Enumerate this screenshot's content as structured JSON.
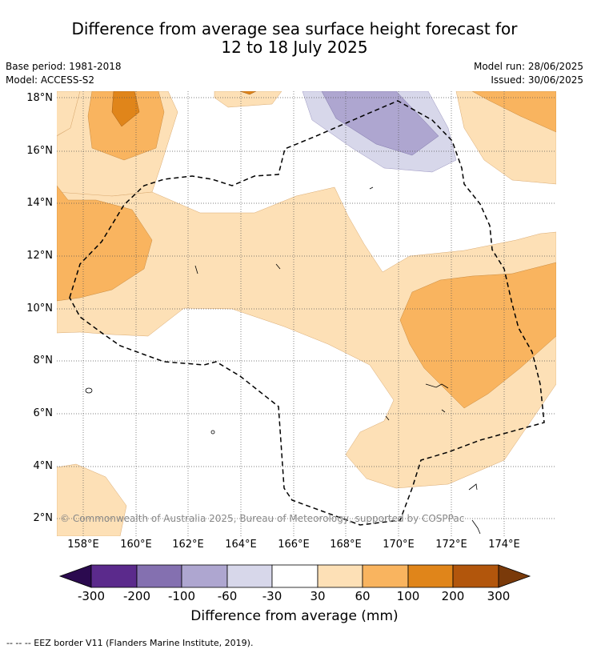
{
  "title_line1": "Difference from average sea surface height forecast for",
  "title_line2": "12 to 18 July 2025",
  "base_period": "Base period: 1981-2018",
  "model": "Model: ACCESS-S2",
  "model_run": "Model run: 28/06/2025",
  "issued": "Issued: 30/06/2025",
  "copyright": "© Commonwealth of Australia 2025, Bureau of Meteorology, supported by COSPPac",
  "lat_labels": [
    "18°N",
    "16°N",
    "14°N",
    "12°N",
    "10°N",
    "8°N",
    "6°N",
    "4°N",
    "2°N"
  ],
  "lon_labels": [
    "158°E",
    "160°E",
    "162°E",
    "164°E",
    "166°E",
    "168°E",
    "170°E",
    "172°E",
    "174°E"
  ],
  "colorbar": {
    "ticks": [
      "-300",
      "-200",
      "-100",
      "-60",
      "-30",
      "30",
      "60",
      "100",
      "200",
      "300"
    ],
    "colors": [
      "#2b0a4f",
      "#5b2a8c",
      "#8470b0",
      "#aea6d0",
      "#d7d7ea",
      "#ffffff",
      "#fde0b6",
      "#f9b45f",
      "#e0851a",
      "#b2560c",
      "#7a3a0a"
    ],
    "label": "Difference from average (mm)"
  },
  "legend_note": "--  --  -- EEZ border V11 (Flanders Marine Institute, 2019).",
  "map_colors": {
    "light_orange": "#fde0b6",
    "mid_orange": "#f9b45f",
    "dark_orange": "#e0851a",
    "light_purple": "#d7d7ea",
    "mid_purple": "#aea6d0"
  }
}
